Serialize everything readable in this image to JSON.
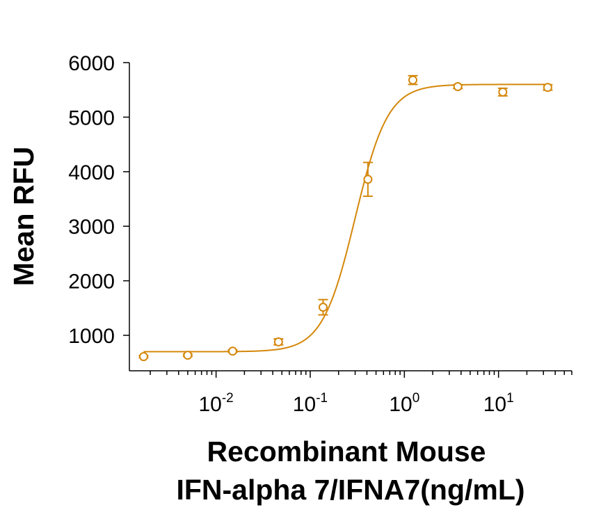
{
  "chart_data": {
    "type": "scatter",
    "xscale": "log",
    "yscale": "linear",
    "xlim": [
      0.0012,
      60
    ],
    "ylim": [
      350,
      6000
    ],
    "yticks": [
      1000,
      2000,
      3000,
      4000,
      5000,
      6000
    ],
    "ytick_labels": [
      "1000",
      "2000",
      "3000",
      "4000",
      "5000",
      "6000"
    ],
    "xticks": [
      {
        "base": "10",
        "exp": "-2",
        "value": 0.01
      },
      {
        "base": "10",
        "exp": "-1",
        "value": 0.1
      },
      {
        "base": "10",
        "exp": "0",
        "value": 1
      },
      {
        "base": "10",
        "exp": "1",
        "value": 10
      }
    ],
    "xlabel_lines": [
      "Recombinant Mouse",
      "IFN-alpha 7/IFNA7(ng/mL)"
    ],
    "ylabel": "Mean RFU",
    "grid": false,
    "color": "#D4870A",
    "points": [
      {
        "x": 0.0017,
        "y": 610,
        "err": 20
      },
      {
        "x": 0.005,
        "y": 635,
        "err": 20
      },
      {
        "x": 0.015,
        "y": 710,
        "err": 20
      },
      {
        "x": 0.046,
        "y": 880,
        "err": 55
      },
      {
        "x": 0.137,
        "y": 1515,
        "err": 140
      },
      {
        "x": 0.41,
        "y": 3860,
        "err": 310
      },
      {
        "x": 1.23,
        "y": 5680,
        "err": 80
      },
      {
        "x": 3.7,
        "y": 5560,
        "err": 35
      },
      {
        "x": 11.1,
        "y": 5460,
        "err": 70
      },
      {
        "x": 33.3,
        "y": 5545,
        "err": 50
      }
    ],
    "fit_curve": {
      "bottom": 700,
      "top": 5600,
      "ec50": 0.3,
      "hill": 2.5
    }
  }
}
